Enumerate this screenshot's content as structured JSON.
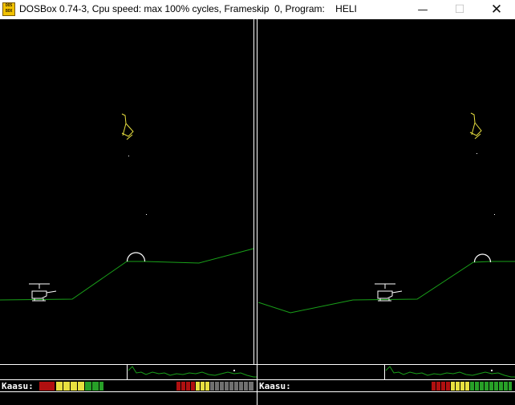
{
  "window": {
    "title": "DOSBox 0.74-3, Cpu speed: max 100% cycles, Frameskip  0, Program:    HELI",
    "icon_text_top": "DOS",
    "icon_text_bottom": "BOX",
    "minimize_glyph": "—",
    "maximize_glyph": "☐",
    "close_glyph": "✕"
  },
  "game": {
    "players": [
      {
        "fuel_label": "Kaasu:"
      },
      {
        "fuel_label": "Kaasu:"
      }
    ]
  },
  "colors": {
    "terrain": "#19a019",
    "outline": "#ffffff",
    "enemy": "#e8e040",
    "bar_red": "#b01010",
    "bar_yellow": "#e8e040",
    "bar_green": "#28a028",
    "bar_gray": "#707070"
  }
}
